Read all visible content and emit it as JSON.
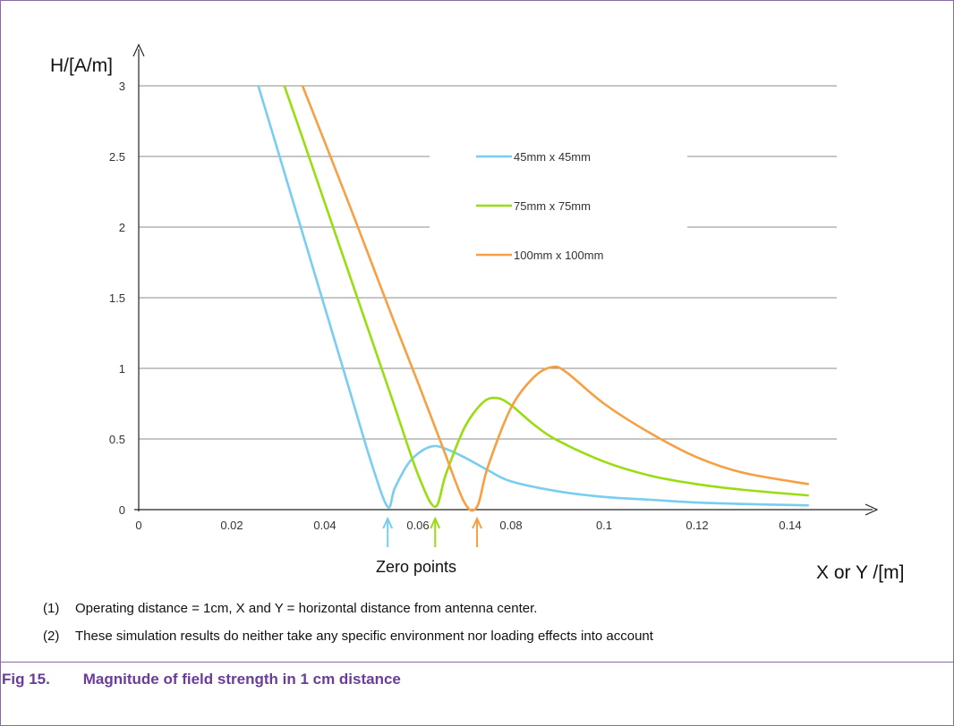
{
  "chart_data": {
    "type": "line",
    "xlabel": "X or Y /[m]",
    "ylabel": "H/[A/m]",
    "xlim": [
      0,
      0.15
    ],
    "ylim": [
      0,
      3
    ],
    "x_ticks": [
      "0",
      "0.02",
      "0.04",
      "0.06",
      "0.08",
      "0.1",
      "0.12",
      "0.14"
    ],
    "y_ticks": [
      "0",
      "0.5",
      "1",
      "1.5",
      "2",
      "2.5",
      "3"
    ],
    "grid": "horizontal",
    "legend_position": "upper-right",
    "series": [
      {
        "name": "45mm x 45mm",
        "color": "#79cdf0",
        "x": [
          0.0257,
          0.03,
          0.035,
          0.04,
          0.045,
          0.05,
          0.0535,
          0.055,
          0.058,
          0.061,
          0.0635,
          0.066,
          0.07,
          0.075,
          0.08,
          0.09,
          0.1,
          0.11,
          0.12,
          0.13,
          0.144
        ],
        "y": [
          3.0,
          2.53,
          1.98,
          1.43,
          0.88,
          0.33,
          0.02,
          0.15,
          0.33,
          0.42,
          0.45,
          0.43,
          0.37,
          0.28,
          0.2,
          0.13,
          0.09,
          0.07,
          0.05,
          0.04,
          0.03
        ]
      },
      {
        "name": "75mm x 75mm",
        "color": "#99dd11",
        "x": [
          0.0313,
          0.035,
          0.04,
          0.045,
          0.05,
          0.055,
          0.06,
          0.0637,
          0.066,
          0.07,
          0.074,
          0.077,
          0.08,
          0.085,
          0.09,
          0.1,
          0.11,
          0.12,
          0.13,
          0.144
        ],
        "y": [
          3.0,
          2.65,
          2.17,
          1.69,
          1.21,
          0.73,
          0.25,
          0.02,
          0.25,
          0.58,
          0.76,
          0.79,
          0.74,
          0.6,
          0.49,
          0.34,
          0.24,
          0.18,
          0.14,
          0.1
        ]
      },
      {
        "name": "100mm x 100mm",
        "color": "#f7a043",
        "x": [
          0.0352,
          0.04,
          0.045,
          0.05,
          0.055,
          0.06,
          0.065,
          0.07,
          0.0727,
          0.075,
          0.08,
          0.085,
          0.089,
          0.092,
          0.1,
          0.11,
          0.12,
          0.13,
          0.144
        ],
        "y": [
          3.0,
          2.6,
          2.18,
          1.75,
          1.32,
          0.9,
          0.47,
          0.05,
          0.02,
          0.3,
          0.72,
          0.94,
          1.01,
          0.97,
          0.75,
          0.54,
          0.37,
          0.26,
          0.18
        ]
      }
    ],
    "annotation": {
      "text": "Zero points",
      "arrow_x": [
        0.0535,
        0.0637,
        0.0727
      ]
    }
  },
  "notes": [
    {
      "num": "(1)",
      "text": "Operating distance = 1cm, X and Y = horizontal distance from antenna center."
    },
    {
      "num": "(2)",
      "text": "These simulation results do neither take any specific environment nor loading effects into account"
    }
  ],
  "caption": {
    "fig": "Fig 15.",
    "title": "Magnitude of field strength in 1 cm distance"
  }
}
